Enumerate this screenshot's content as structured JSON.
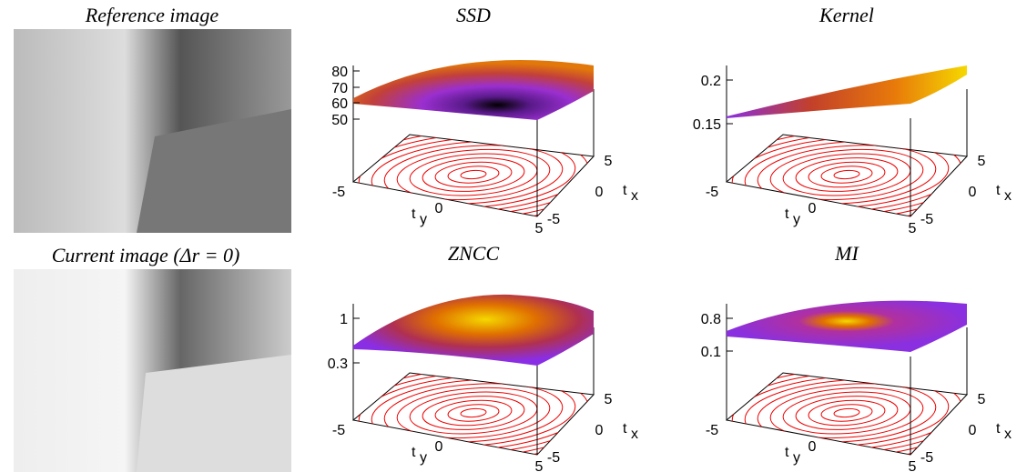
{
  "images": [
    {
      "title": "Reference image"
    },
    {
      "title": "Current image (Δr = 0)"
    }
  ],
  "plots": [
    {
      "title": "SSD",
      "zticks": [
        "80",
        "70",
        "60",
        "50"
      ],
      "ty_ticks": [
        "-5",
        "0",
        "5"
      ],
      "tx_ticks": [
        "5",
        "0",
        "-5"
      ],
      "tx_label": "t",
      "tx_sub": "x",
      "ty_label": "t",
      "ty_sub": "y"
    },
    {
      "title": "Kernel",
      "zticks": [
        "0.2",
        "0.15"
      ],
      "ty_ticks": [
        "-5",
        "0",
        "5"
      ],
      "tx_ticks": [
        "5",
        "0",
        "-5"
      ],
      "tx_label": "t",
      "tx_sub": "x",
      "ty_label": "t",
      "ty_sub": "y"
    },
    {
      "title": "ZNCC",
      "zticks": [
        "1",
        "0.3"
      ],
      "ty_ticks": [
        "-5",
        "0",
        "5"
      ],
      "tx_ticks": [
        "5",
        "0",
        "-5"
      ],
      "tx_label": "t",
      "tx_sub": "x",
      "ty_label": "t",
      "ty_sub": "y"
    },
    {
      "title": "MI",
      "zticks": [
        "0.8",
        "0.1"
      ],
      "ty_ticks": [
        "-5",
        "0",
        "5"
      ],
      "tx_ticks": [
        "5",
        "0",
        "-5"
      ],
      "tx_label": "t",
      "tx_sub": "x",
      "ty_label": "t",
      "ty_sub": "y"
    }
  ]
}
